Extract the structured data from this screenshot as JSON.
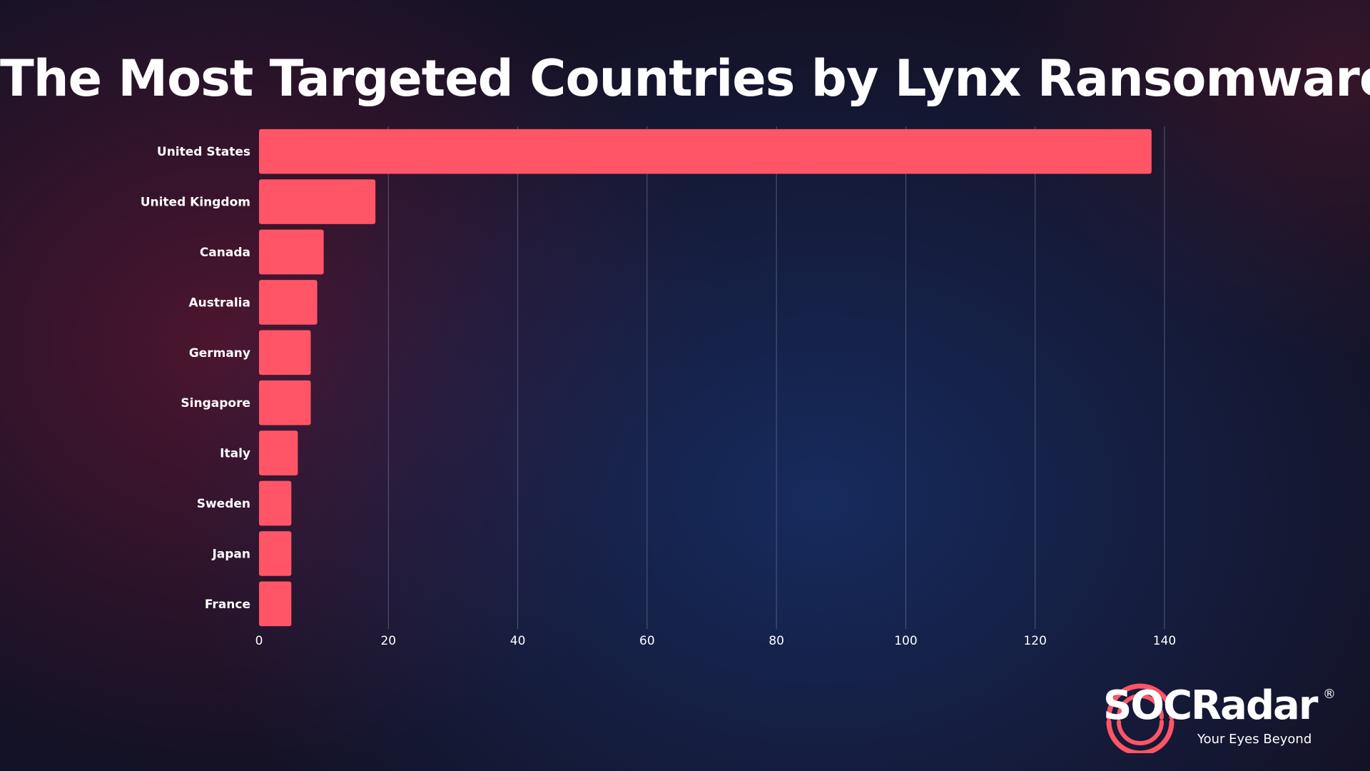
{
  "title": "The Most Targeted Countries by Lynx Ransomware",
  "chart_data": {
    "type": "bar",
    "orientation": "horizontal",
    "title": "The Most Targeted Countries by Lynx Ransomware",
    "xlabel": "",
    "ylabel": "",
    "categories": [
      "United States",
      "United Kingdom",
      "Canada",
      "Australia",
      "Germany",
      "Singapore",
      "Italy",
      "Sweden",
      "Japan",
      "France"
    ],
    "values": [
      138,
      18,
      10,
      9,
      8,
      8,
      6,
      5,
      5,
      5
    ],
    "xlim": [
      0,
      140
    ],
    "xticks": [
      0,
      20,
      40,
      60,
      80,
      100,
      120,
      140
    ],
    "grid": "vertical",
    "bar_color": "#ff5566",
    "grid_color": "#6b7493"
  },
  "logo": {
    "name": "SOCRadar",
    "registered": "®",
    "tagline": "Your Eyes Beyond",
    "accent": "#ff5566"
  }
}
